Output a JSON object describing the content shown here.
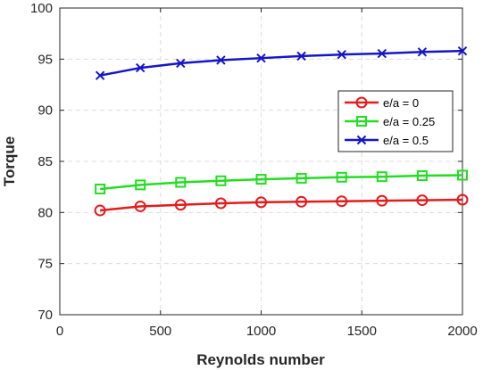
{
  "chart_data": {
    "type": "line",
    "xlabel": "Reynolds number",
    "ylabel": "Torque",
    "xlim": [
      0,
      2000
    ],
    "ylim": [
      70,
      100
    ],
    "xticks": [
      0,
      500,
      1000,
      1500,
      2000
    ],
    "yticks": [
      70,
      75,
      80,
      85,
      90,
      95,
      100
    ],
    "grid": true,
    "legend_position": "right",
    "x": [
      200,
      400,
      600,
      800,
      1000,
      1200,
      1400,
      1600,
      1800,
      2000
    ],
    "series": [
      {
        "name": "e/a = 0",
        "color": "#e41a1c",
        "marker": "circle",
        "values": [
          80.2,
          80.6,
          80.75,
          80.9,
          81.0,
          81.05,
          81.1,
          81.15,
          81.2,
          81.25
        ]
      },
      {
        "name": "e/a = 0.25",
        "color": "#22dd22",
        "marker": "square",
        "values": [
          82.3,
          82.7,
          82.95,
          83.1,
          83.25,
          83.35,
          83.45,
          83.5,
          83.6,
          83.65
        ]
      },
      {
        "name": "e/a = 0.5",
        "color": "#1515c8",
        "marker": "x",
        "values": [
          93.4,
          94.15,
          94.6,
          94.9,
          95.1,
          95.3,
          95.45,
          95.55,
          95.7,
          95.8
        ]
      }
    ]
  }
}
